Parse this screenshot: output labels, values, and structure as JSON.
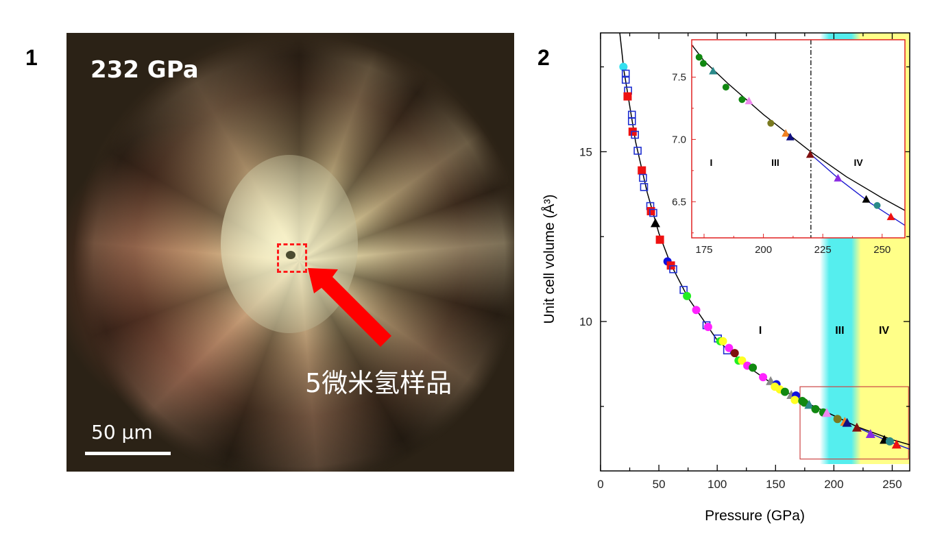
{
  "panels": {
    "left_label": "1",
    "right_label": "2"
  },
  "photo": {
    "pressure_label": "232 GPa",
    "sample_label": "5微米氢样品",
    "scale_bar_label": "50 µm",
    "arrow_color": "#ff0000",
    "highlight_box_color": "#ff1a1a"
  },
  "chart_data": [
    {
      "type": "scatter",
      "xlabel": "Pressure (GPa)",
      "ylabel": "Unit cell volume (Å³)",
      "xlim": [
        0,
        265
      ],
      "ylim": [
        5.6,
        18.5
      ],
      "xticks": [
        0,
        50,
        100,
        150,
        200,
        250
      ],
      "yticks": [
        10,
        15
      ],
      "grid": false,
      "phase_labels": [
        {
          "text": "I",
          "x": 137,
          "y": 9.8
        },
        {
          "text": "III",
          "x": 205,
          "y": 9.8
        },
        {
          "text": "IV",
          "x": 243,
          "y": 9.8
        }
      ],
      "phase_shading": [
        {
          "phase": "III",
          "from": 188,
          "to": 220,
          "color": "#55eeee"
        },
        {
          "phase": "IV",
          "from": 220,
          "to": 265,
          "color": "#ffff88"
        }
      ],
      "zoom_box": {
        "x": [
          171,
          264
        ],
        "y": [
          5.95,
          8.08
        ],
        "color": "#cc4444"
      },
      "lines": [
        {
          "color": "#000000",
          "points": [
            [
              16.5,
              18.5
            ],
            [
              20,
              17.4
            ],
            [
              30,
              15.3
            ],
            [
              40,
              13.8
            ],
            [
              50,
              12.6
            ],
            [
              60,
              11.7
            ],
            [
              75,
              10.7
            ],
            [
              100,
              9.45
            ],
            [
              125,
              8.7
            ],
            [
              150,
              8.1
            ],
            [
              175,
              7.63
            ],
            [
              200,
              7.23
            ],
            [
              220,
              6.9
            ],
            [
              250,
              6.52
            ],
            [
              265,
              6.37
            ]
          ]
        },
        {
          "color": "#1a1ad0",
          "points": [
            [
              220,
              6.88
            ],
            [
              235,
              6.65
            ],
            [
              250,
              6.43
            ],
            [
              265,
              6.24
            ]
          ]
        }
      ],
      "points": [
        [
          19.6,
          17.5,
          "#33e0f0",
          "circle"
        ],
        [
          21.6,
          17.3,
          "#1f2fd0",
          "open-square"
        ],
        [
          21.6,
          17.12,
          "#1f2fd0",
          "open-square"
        ],
        [
          23.6,
          16.8,
          "#1f2fd0",
          "open-square"
        ],
        [
          23.2,
          16.63,
          "#ee1111",
          "square"
        ],
        [
          26.9,
          16.09,
          "#1f2fd0",
          "open-square"
        ],
        [
          26.9,
          15.9,
          "#1f2fd0",
          "open-square"
        ],
        [
          27.5,
          15.59,
          "#ee1111",
          "square"
        ],
        [
          29.5,
          15.5,
          "#1f2fd0",
          "open-square"
        ],
        [
          31.8,
          15.03,
          "#1f2fd0",
          "open-square"
        ],
        [
          35.4,
          14.45,
          "#ee1111",
          "square"
        ],
        [
          36.4,
          14.23,
          "#1f2fd0",
          "open-square"
        ],
        [
          37.3,
          13.96,
          "#1f2fd0",
          "open-square"
        ],
        [
          42.6,
          13.4,
          "#1f2fd0",
          "open-square"
        ],
        [
          43.2,
          13.25,
          "#ee1111",
          "square"
        ],
        [
          45.2,
          13.2,
          "#1f2fd0",
          "open-square"
        ],
        [
          47,
          12.9,
          "#000000",
          "triangle"
        ],
        [
          50.9,
          12.41,
          "#ee1111",
          "square"
        ],
        [
          57.4,
          11.77,
          "#1010e0",
          "circle"
        ],
        [
          60.3,
          11.65,
          "#ee1111",
          "square"
        ],
        [
          62.3,
          11.54,
          "#1f2fd0",
          "open-square"
        ],
        [
          71.2,
          10.93,
          "#1f2fd0",
          "open-square"
        ],
        [
          74.1,
          10.75,
          "#22ee22",
          "circle"
        ],
        [
          82,
          10.34,
          "#ff22ff",
          "circle"
        ],
        [
          90.8,
          9.89,
          "#1f2fd0",
          "open-square"
        ],
        [
          92.2,
          9.84,
          "#ff22ff",
          "circle"
        ],
        [
          100.6,
          9.5,
          "#1f2fd0",
          "open-square"
        ],
        [
          102.6,
          9.42,
          "#22ee22",
          "circle"
        ],
        [
          104.9,
          9.42,
          "#ffff22",
          "circle"
        ],
        [
          108.5,
          9.15,
          "#1f2fd0",
          "open-square"
        ],
        [
          110.1,
          9.22,
          "#ff22ff",
          "circle"
        ],
        [
          115,
          9.07,
          "#801010",
          "circle"
        ],
        [
          118.3,
          8.85,
          "#22ee22",
          "circle"
        ],
        [
          121.3,
          8.85,
          "#ffff22",
          "circle"
        ],
        [
          125.8,
          8.7,
          "#ff22ff",
          "circle"
        ],
        [
          130.5,
          8.64,
          "#118811",
          "circle"
        ],
        [
          139.3,
          8.36,
          "#ff22ff",
          "circle"
        ],
        [
          145.8,
          8.25,
          "#888888",
          "triangle"
        ],
        [
          150.8,
          8.15,
          "#1010e0",
          "circle"
        ],
        [
          149.4,
          8.08,
          "#ffff22",
          "circle"
        ],
        [
          153.7,
          8.0,
          "#ffff22",
          "circle"
        ],
        [
          158,
          7.93,
          "#118811",
          "circle"
        ],
        [
          163.5,
          7.84,
          "#888888",
          "triangle"
        ],
        [
          167.5,
          7.82,
          "#1010e0",
          "circle"
        ],
        [
          166.5,
          7.69,
          "#ffff22",
          "circle"
        ],
        [
          172.9,
          7.66,
          "#118811",
          "circle"
        ],
        [
          174.7,
          7.61,
          "#118811",
          "circle"
        ],
        [
          178.8,
          7.55,
          "#2a8a8a",
          "triangle"
        ],
        [
          184.2,
          7.42,
          "#118811",
          "circle"
        ],
        [
          190.9,
          7.32,
          "#118811",
          "circle"
        ],
        [
          193.9,
          7.31,
          "#ee88ee",
          "triangle"
        ],
        [
          203.1,
          7.13,
          "#7a7a20",
          "circle"
        ],
        [
          209.4,
          7.05,
          "#f08020",
          "triangle"
        ],
        [
          211.3,
          7.02,
          "#101080",
          "triangle"
        ],
        [
          219.7,
          6.88,
          "#801010",
          "triangle"
        ],
        [
          231.4,
          6.69,
          "#8a2be2",
          "triangle"
        ],
        [
          243.3,
          6.52,
          "#000000",
          "triangle"
        ],
        [
          247.9,
          6.47,
          "#2a8a8a",
          "circle"
        ],
        [
          253.7,
          6.38,
          "#ee1111",
          "triangle"
        ]
      ]
    },
    {
      "type": "scatter",
      "xlim": [
        169.8,
        259.6
      ],
      "ylim": [
        6.21,
        7.8
      ],
      "xticks": [
        175,
        200,
        225,
        250
      ],
      "yticks": [
        6.5,
        7.0,
        7.5
      ],
      "tick_labels_y": [
        "6.5",
        "7.0",
        "7.5"
      ],
      "grid": false,
      "frame_color": "#e02020",
      "phase_boundary": {
        "x": 220,
        "style": "dash-dot"
      },
      "phase_labels": [
        {
          "text": "I",
          "x": 178,
          "y": 6.82
        },
        {
          "text": "III",
          "x": 205,
          "y": 6.82
        },
        {
          "text": "IV",
          "x": 240,
          "y": 6.82
        }
      ],
      "lines": [
        {
          "color": "#000000",
          "points": [
            [
              169.8,
              7.76
            ],
            [
              175,
              7.63
            ],
            [
              185,
              7.45
            ],
            [
              200,
              7.2
            ],
            [
              210,
              7.05
            ],
            [
              220,
              6.9
            ],
            [
              235,
              6.7
            ],
            [
              250,
              6.53
            ],
            [
              259.6,
              6.43
            ]
          ]
        },
        {
          "color": "#1a1ad0",
          "points": [
            [
              220,
              6.88
            ],
            [
              232,
              6.68
            ],
            [
              245,
              6.49
            ],
            [
              259.6,
              6.31
            ]
          ]
        }
      ],
      "points": [
        [
          172.9,
          7.66,
          "#118811",
          "circle"
        ],
        [
          174.7,
          7.61,
          "#118811",
          "circle"
        ],
        [
          178.8,
          7.55,
          "#2a8a8a",
          "triangle"
        ],
        [
          184.2,
          7.42,
          "#118811",
          "circle"
        ],
        [
          191,
          7.32,
          "#118811",
          "circle"
        ],
        [
          193.9,
          7.31,
          "#ee88ee",
          "triangle"
        ],
        [
          203.1,
          7.13,
          "#7a7a20",
          "circle"
        ],
        [
          209.4,
          7.05,
          "#f08020",
          "triangle"
        ],
        [
          211.3,
          7.02,
          "#101080",
          "triangle"
        ],
        [
          219.7,
          6.88,
          "#801010",
          "triangle"
        ],
        [
          231.4,
          6.69,
          "#8a2be2",
          "triangle"
        ],
        [
          243.3,
          6.52,
          "#000000",
          "triangle"
        ],
        [
          247.9,
          6.47,
          "#2a8a8a",
          "circle"
        ],
        [
          253.7,
          6.38,
          "#ee1111",
          "triangle"
        ]
      ]
    }
  ]
}
